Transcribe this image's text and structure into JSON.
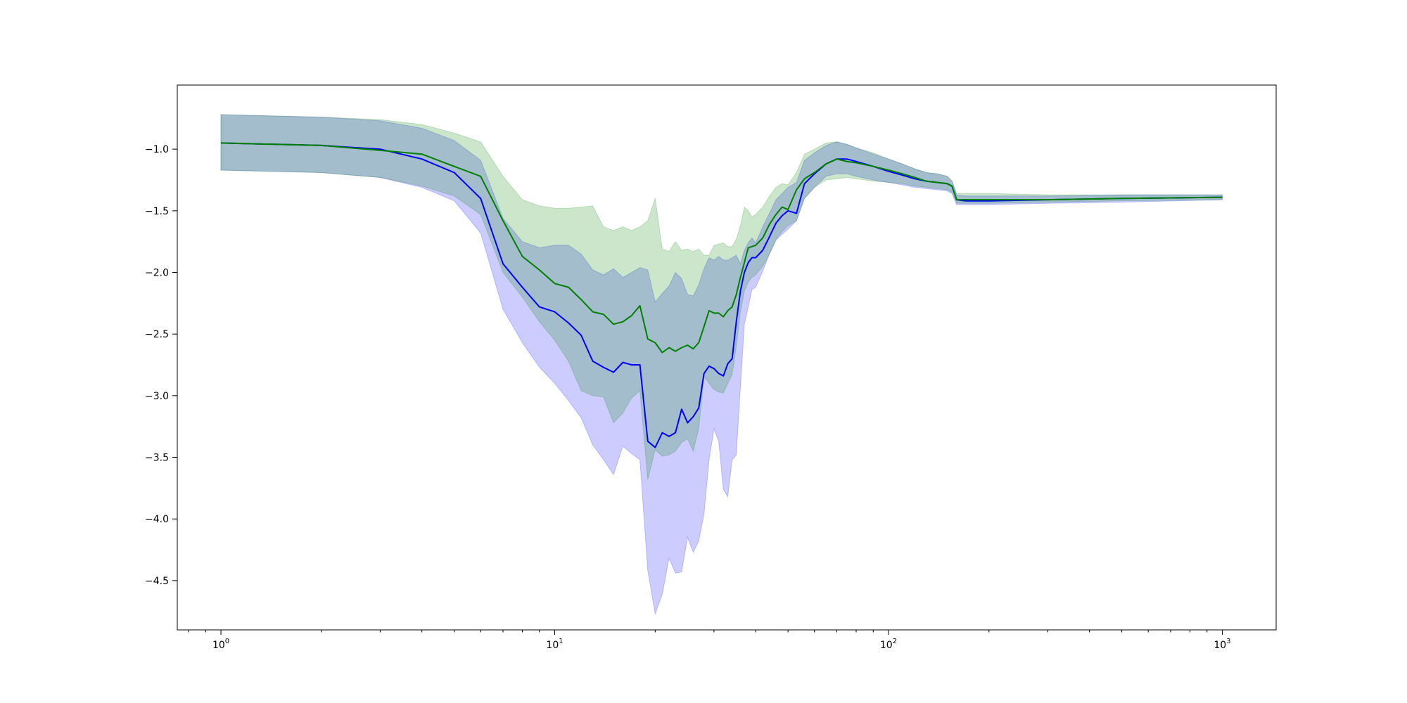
{
  "chart_data": {
    "type": "line",
    "title": "",
    "xlabel": "",
    "ylabel": "",
    "xscale": "log",
    "xlim": [
      0.74,
      1450
    ],
    "ylim": [
      -4.9,
      -0.48
    ],
    "grid": false,
    "xticks": [
      {
        "value": 1,
        "base": "10",
        "exp": "0"
      },
      {
        "value": 10,
        "base": "10",
        "exp": "1"
      },
      {
        "value": 100,
        "base": "10",
        "exp": "2"
      },
      {
        "value": 1000,
        "base": "10",
        "exp": "3"
      }
    ],
    "yticks": [
      {
        "value": -1.0,
        "label": "−1.0"
      },
      {
        "value": -1.5,
        "label": "−1.5"
      },
      {
        "value": -2.0,
        "label": "−2.0"
      },
      {
        "value": -2.5,
        "label": "−2.5"
      },
      {
        "value": -3.0,
        "label": "−3.0"
      },
      {
        "value": -3.5,
        "label": "−3.5"
      },
      {
        "value": -4.0,
        "label": "−4.0"
      },
      {
        "value": -4.5,
        "label": "−4.5"
      }
    ],
    "series": [
      {
        "color": "#0000ff",
        "band_color": "#0000ff",
        "band_opacity": 0.2,
        "x": [
          1,
          2,
          3,
          4,
          5,
          6,
          7,
          8,
          9,
          10,
          11,
          12,
          13,
          14,
          15,
          16,
          17,
          18,
          19,
          20,
          21,
          22,
          23,
          24,
          25,
          26,
          27,
          28,
          29,
          30,
          31,
          32,
          33,
          34,
          35,
          36,
          37,
          38,
          39,
          40,
          42,
          44,
          46,
          48,
          50,
          53,
          56,
          60,
          65,
          70,
          75,
          80,
          90,
          100,
          110,
          120,
          130,
          140,
          150,
          155,
          160,
          170,
          200,
          300,
          500,
          1000
        ],
        "mean": [
          -0.95,
          -0.97,
          -1.0,
          -1.08,
          -1.19,
          -1.4,
          -1.93,
          -2.12,
          -2.28,
          -2.32,
          -2.41,
          -2.51,
          -2.72,
          -2.77,
          -2.81,
          -2.73,
          -2.75,
          -2.75,
          -3.37,
          -3.42,
          -3.3,
          -3.33,
          -3.3,
          -3.11,
          -3.22,
          -3.17,
          -3.1,
          -2.82,
          -2.76,
          -2.78,
          -2.82,
          -2.84,
          -2.74,
          -2.7,
          -2.4,
          -2.15,
          -2.0,
          -1.92,
          -1.88,
          -1.88,
          -1.82,
          -1.71,
          -1.6,
          -1.54,
          -1.5,
          -1.52,
          -1.28,
          -1.2,
          -1.12,
          -1.08,
          -1.08,
          -1.1,
          -1.14,
          -1.18,
          -1.21,
          -1.24,
          -1.26,
          -1.27,
          -1.28,
          -1.3,
          -1.41,
          -1.42,
          -1.42,
          -1.41,
          -1.4,
          -1.39
        ],
        "upper": [
          -0.72,
          -0.74,
          -0.77,
          -0.83,
          -0.93,
          -1.09,
          -1.56,
          -1.75,
          -1.8,
          -1.78,
          -1.78,
          -1.85,
          -1.98,
          -2.02,
          -1.97,
          -2.04,
          -2.0,
          -1.96,
          -1.98,
          -2.24,
          -2.17,
          -2.11,
          -2.0,
          -2.05,
          -2.18,
          -2.19,
          -2.1,
          -1.97,
          -1.88,
          -1.9,
          -1.87,
          -1.9,
          -1.9,
          -1.88,
          -1.86,
          -1.93,
          -1.82,
          -1.76,
          -1.72,
          -1.76,
          -1.63,
          -1.52,
          -1.41,
          -1.36,
          -1.31,
          -1.27,
          -1.09,
          -1.03,
          -0.97,
          -0.94,
          -0.96,
          -0.99,
          -1.04,
          -1.08,
          -1.12,
          -1.16,
          -1.19,
          -1.2,
          -1.22,
          -1.26,
          -1.37,
          -1.38,
          -1.38,
          -1.38,
          -1.37,
          -1.37
        ],
        "lower": [
          -1.17,
          -1.19,
          -1.23,
          -1.31,
          -1.42,
          -1.68,
          -2.3,
          -2.57,
          -2.77,
          -2.9,
          -3.04,
          -3.18,
          -3.4,
          -3.52,
          -3.64,
          -3.41,
          -3.47,
          -3.52,
          -4.42,
          -4.77,
          -4.61,
          -4.32,
          -4.44,
          -4.43,
          -4.15,
          -4.27,
          -4.18,
          -3.96,
          -3.52,
          -3.27,
          -3.37,
          -3.76,
          -3.82,
          -3.52,
          -3.48,
          -2.93,
          -2.42,
          -2.28,
          -2.14,
          -2.12,
          -1.99,
          -1.85,
          -1.74,
          -1.69,
          -1.65,
          -1.58,
          -1.4,
          -1.31,
          -1.22,
          -1.2,
          -1.2,
          -1.22,
          -1.25,
          -1.27,
          -1.29,
          -1.31,
          -1.32,
          -1.33,
          -1.34,
          -1.36,
          -1.45,
          -1.45,
          -1.45,
          -1.44,
          -1.43,
          -1.41
        ]
      },
      {
        "color": "#008000",
        "band_color": "#008000",
        "band_opacity": 0.2,
        "x": [
          1,
          2,
          3,
          4,
          5,
          6,
          7,
          8,
          9,
          10,
          11,
          12,
          13,
          14,
          15,
          16,
          17,
          18,
          19,
          20,
          21,
          22,
          23,
          24,
          25,
          26,
          27,
          28,
          29,
          30,
          31,
          32,
          33,
          34,
          35,
          36,
          37,
          38,
          39,
          40,
          42,
          44,
          46,
          48,
          50,
          53,
          56,
          60,
          65,
          70,
          75,
          80,
          90,
          100,
          110,
          120,
          130,
          140,
          150,
          155,
          160,
          170,
          200,
          300,
          500,
          1000
        ],
        "mean": [
          -0.95,
          -0.97,
          -1.01,
          -1.04,
          -1.14,
          -1.22,
          -1.58,
          -1.87,
          -1.98,
          -2.09,
          -2.12,
          -2.22,
          -2.32,
          -2.34,
          -2.42,
          -2.4,
          -2.35,
          -2.27,
          -2.54,
          -2.57,
          -2.65,
          -2.61,
          -2.64,
          -2.61,
          -2.59,
          -2.62,
          -2.57,
          -2.44,
          -2.31,
          -2.33,
          -2.33,
          -2.36,
          -2.31,
          -2.28,
          -2.18,
          -2.04,
          -1.92,
          -1.8,
          -1.79,
          -1.78,
          -1.72,
          -1.61,
          -1.53,
          -1.47,
          -1.49,
          -1.33,
          -1.24,
          -1.19,
          -1.12,
          -1.08,
          -1.1,
          -1.11,
          -1.14,
          -1.17,
          -1.2,
          -1.23,
          -1.26,
          -1.27,
          -1.28,
          -1.3,
          -1.41,
          -1.41,
          -1.41,
          -1.41,
          -1.4,
          -1.39
        ],
        "upper": [
          -0.72,
          -0.74,
          -0.76,
          -0.8,
          -0.87,
          -0.94,
          -1.22,
          -1.41,
          -1.46,
          -1.48,
          -1.48,
          -1.47,
          -1.46,
          -1.63,
          -1.66,
          -1.63,
          -1.66,
          -1.63,
          -1.58,
          -1.4,
          -1.81,
          -1.83,
          -1.75,
          -1.82,
          -1.81,
          -1.83,
          -1.81,
          -1.86,
          -1.86,
          -1.78,
          -1.77,
          -1.76,
          -1.79,
          -1.79,
          -1.73,
          -1.62,
          -1.47,
          -1.5,
          -1.55,
          -1.53,
          -1.47,
          -1.38,
          -1.31,
          -1.28,
          -1.29,
          -1.19,
          -1.04,
          -1.0,
          -0.95,
          -0.94,
          -0.96,
          -0.99,
          -1.03,
          -1.08,
          -1.12,
          -1.16,
          -1.19,
          -1.2,
          -1.22,
          -1.26,
          -1.36,
          -1.36,
          -1.36,
          -1.37,
          -1.37,
          -1.37
        ],
        "lower": [
          -1.17,
          -1.19,
          -1.23,
          -1.3,
          -1.38,
          -1.53,
          -2.0,
          -2.2,
          -2.4,
          -2.55,
          -2.72,
          -2.96,
          -3.0,
          -3.01,
          -3.22,
          -3.14,
          -3.02,
          -2.96,
          -3.68,
          -3.44,
          -3.49,
          -3.48,
          -3.45,
          -3.38,
          -3.35,
          -3.45,
          -3.27,
          -2.84,
          -2.9,
          -2.95,
          -2.97,
          -2.98,
          -2.9,
          -2.83,
          -2.6,
          -2.32,
          -2.15,
          -2.08,
          -2.04,
          -2.02,
          -1.95,
          -1.85,
          -1.73,
          -1.67,
          -1.62,
          -1.58,
          -1.4,
          -1.31,
          -1.25,
          -1.24,
          -1.23,
          -1.24,
          -1.26,
          -1.27,
          -1.28,
          -1.3,
          -1.31,
          -1.32,
          -1.33,
          -1.35,
          -1.44,
          -1.44,
          -1.44,
          -1.43,
          -1.42,
          -1.41
        ]
      }
    ]
  }
}
